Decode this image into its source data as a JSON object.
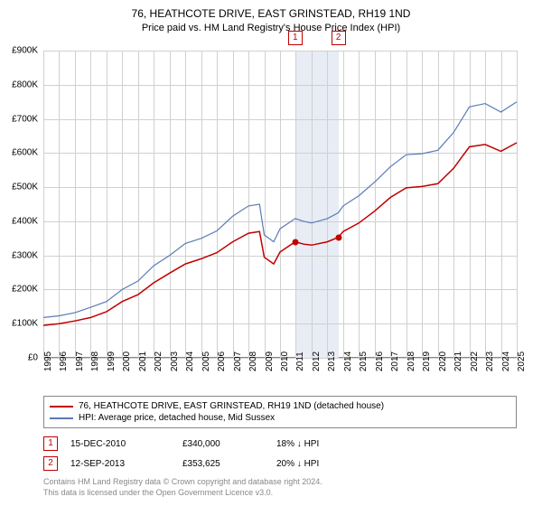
{
  "title": "76, HEATHCOTE DRIVE, EAST GRINSTEAD, RH19 1ND",
  "subtitle": "Price paid vs. HM Land Registry's House Price Index (HPI)",
  "chart": {
    "type": "line",
    "ylim": [
      0,
      900
    ],
    "ytick_step": 100,
    "yticks": [
      "£0",
      "£100K",
      "£200K",
      "£300K",
      "£400K",
      "£500K",
      "£600K",
      "£700K",
      "£800K",
      "£900K"
    ],
    "xlim": [
      1995,
      2025
    ],
    "xticks": [
      1995,
      1996,
      1997,
      1998,
      1999,
      2000,
      2001,
      2002,
      2003,
      2004,
      2005,
      2006,
      2007,
      2008,
      2009,
      2010,
      2011,
      2012,
      2013,
      2014,
      2015,
      2016,
      2017,
      2018,
      2019,
      2020,
      2021,
      2022,
      2023,
      2024,
      2025
    ],
    "grid_color": "#d0d0d0",
    "background_color": "#ffffff",
    "shade_band": {
      "from": 2010.96,
      "to": 2013.7,
      "color": "#e8ecf5"
    },
    "series": [
      {
        "name": "price_paid",
        "label": "76, HEATHCOTE DRIVE, EAST GRINSTEAD, RH19 1ND (detached house)",
        "color": "#c00000",
        "line_width": 1.5,
        "data": [
          [
            1995,
            95
          ],
          [
            1996,
            100
          ],
          [
            1997,
            108
          ],
          [
            1998,
            118
          ],
          [
            1999,
            135
          ],
          [
            2000,
            165
          ],
          [
            2001,
            185
          ],
          [
            2002,
            220
          ],
          [
            2003,
            248
          ],
          [
            2004,
            275
          ],
          [
            2005,
            290
          ],
          [
            2006,
            308
          ],
          [
            2007,
            340
          ],
          [
            2008,
            365
          ],
          [
            2008.7,
            370
          ],
          [
            2009,
            295
          ],
          [
            2009.6,
            275
          ],
          [
            2010,
            310
          ],
          [
            2010.96,
            340
          ],
          [
            2011.5,
            333
          ],
          [
            2012,
            330
          ],
          [
            2013,
            340
          ],
          [
            2013.7,
            353
          ],
          [
            2014,
            370
          ],
          [
            2015,
            395
          ],
          [
            2016,
            430
          ],
          [
            2017,
            470
          ],
          [
            2018,
            498
          ],
          [
            2019,
            502
          ],
          [
            2020,
            510
          ],
          [
            2021,
            555
          ],
          [
            2022,
            618
          ],
          [
            2023,
            625
          ],
          [
            2024,
            605
          ],
          [
            2025,
            630
          ]
        ]
      },
      {
        "name": "hpi",
        "label": "HPI: Average price, detached house, Mid Sussex",
        "color": "#5b7bb4",
        "line_width": 1.2,
        "data": [
          [
            1995,
            118
          ],
          [
            1996,
            123
          ],
          [
            1997,
            132
          ],
          [
            1998,
            148
          ],
          [
            1999,
            165
          ],
          [
            2000,
            200
          ],
          [
            2001,
            225
          ],
          [
            2002,
            270
          ],
          [
            2003,
            300
          ],
          [
            2004,
            335
          ],
          [
            2005,
            350
          ],
          [
            2006,
            372
          ],
          [
            2007,
            415
          ],
          [
            2008,
            445
          ],
          [
            2008.7,
            450
          ],
          [
            2009,
            360
          ],
          [
            2009.6,
            340
          ],
          [
            2010,
            378
          ],
          [
            2010.96,
            408
          ],
          [
            2011.5,
            400
          ],
          [
            2012,
            395
          ],
          [
            2013,
            408
          ],
          [
            2013.7,
            425
          ],
          [
            2014,
            445
          ],
          [
            2015,
            475
          ],
          [
            2016,
            515
          ],
          [
            2017,
            560
          ],
          [
            2018,
            595
          ],
          [
            2019,
            598
          ],
          [
            2020,
            608
          ],
          [
            2021,
            660
          ],
          [
            2022,
            735
          ],
          [
            2023,
            745
          ],
          [
            2024,
            720
          ],
          [
            2025,
            750
          ]
        ]
      }
    ],
    "markers": [
      {
        "n": "1",
        "x": 2010.96,
        "y": 340
      },
      {
        "n": "2",
        "x": 2013.7,
        "y": 353
      }
    ]
  },
  "legend": {
    "series1": "76, HEATHCOTE DRIVE, EAST GRINSTEAD, RH19 1ND (detached house)",
    "series2": "HPI: Average price, detached house, Mid Sussex"
  },
  "events": [
    {
      "n": "1",
      "date": "15-DEC-2010",
      "price": "£340,000",
      "diff": "18% ↓ HPI"
    },
    {
      "n": "2",
      "date": "12-SEP-2013",
      "price": "£353,625",
      "diff": "20% ↓ HPI"
    }
  ],
  "credit1": "Contains HM Land Registry data © Crown copyright and database right 2024.",
  "credit2": "This data is licensed under the Open Government Licence v3.0."
}
